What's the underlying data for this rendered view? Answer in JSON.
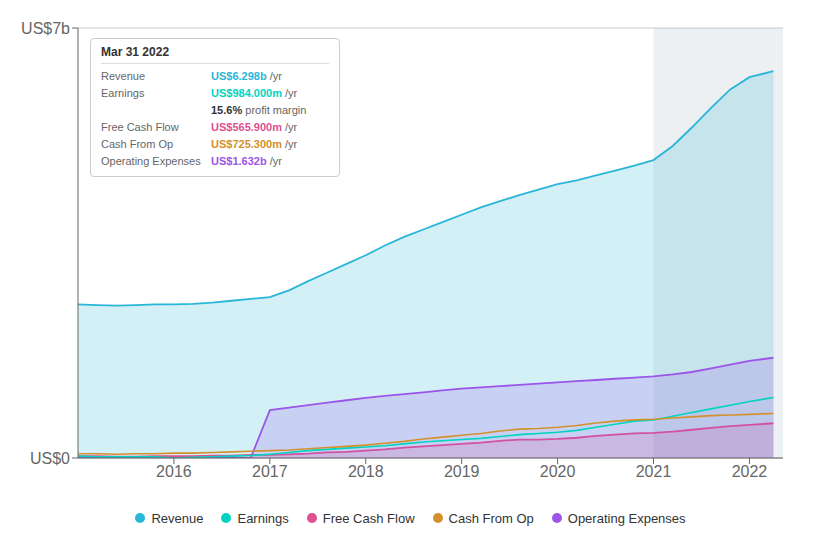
{
  "chart_data": {
    "type": "area",
    "x": [
      2015.0,
      2015.2,
      2015.4,
      2015.6,
      2015.8,
      2016.0,
      2016.2,
      2016.4,
      2016.6,
      2016.8,
      2017.0,
      2017.2,
      2017.4,
      2017.6,
      2017.8,
      2018.0,
      2018.2,
      2018.4,
      2018.6,
      2018.8,
      2019.0,
      2019.2,
      2019.4,
      2019.6,
      2019.8,
      2020.0,
      2020.2,
      2020.4,
      2020.6,
      2020.8,
      2021.0,
      2021.2,
      2021.4,
      2021.6,
      2021.8,
      2022.0,
      2022.25
    ],
    "series": [
      {
        "name": "Revenue",
        "type": "area",
        "color": "#29b6d8",
        "values": [
          2.5,
          2.49,
          2.48,
          2.49,
          2.5,
          2.5,
          2.51,
          2.53,
          2.56,
          2.59,
          2.62,
          2.73,
          2.88,
          3.02,
          3.16,
          3.3,
          3.46,
          3.6,
          3.72,
          3.84,
          3.96,
          4.08,
          4.18,
          4.28,
          4.37,
          4.46,
          4.52,
          4.6,
          4.68,
          4.76,
          4.85,
          5.08,
          5.38,
          5.7,
          6.0,
          6.2,
          6.298
        ]
      },
      {
        "name": "Earnings",
        "type": "line",
        "color": "#00d4c0",
        "values": [
          0.03,
          0.02,
          0.02,
          0.02,
          0.02,
          0.0,
          0.01,
          0.02,
          0.03,
          0.04,
          0.06,
          0.09,
          0.12,
          0.14,
          0.16,
          0.18,
          0.2,
          0.23,
          0.26,
          0.28,
          0.3,
          0.32,
          0.35,
          0.38,
          0.4,
          0.42,
          0.45,
          0.5,
          0.55,
          0.6,
          0.62,
          0.68,
          0.74,
          0.8,
          0.86,
          0.92,
          0.984
        ]
      },
      {
        "name": "Free Cash Flow",
        "type": "area",
        "color": "#e05090",
        "values": [
          0.03,
          0.03,
          0.02,
          0.02,
          0.03,
          0.03,
          0.03,
          0.04,
          0.04,
          0.05,
          0.05,
          0.06,
          0.07,
          0.09,
          0.1,
          0.12,
          0.14,
          0.17,
          0.19,
          0.21,
          0.23,
          0.25,
          0.28,
          0.3,
          0.3,
          0.31,
          0.33,
          0.36,
          0.38,
          0.4,
          0.41,
          0.43,
          0.46,
          0.49,
          0.52,
          0.54,
          0.5659
        ]
      },
      {
        "name": "Cash From Op",
        "type": "line",
        "color": "#d4902a",
        "values": [
          0.07,
          0.07,
          0.06,
          0.07,
          0.07,
          0.08,
          0.08,
          0.09,
          0.1,
          0.11,
          0.12,
          0.13,
          0.15,
          0.17,
          0.19,
          0.21,
          0.24,
          0.27,
          0.31,
          0.34,
          0.37,
          0.4,
          0.44,
          0.47,
          0.48,
          0.5,
          0.53,
          0.57,
          0.6,
          0.62,
          0.63,
          0.65,
          0.67,
          0.69,
          0.7,
          0.71,
          0.7253
        ]
      },
      {
        "name": "Operating Expenses",
        "type": "area",
        "color": "#9b55e8",
        "values": [
          0.0,
          0.0,
          0.0,
          0.0,
          0.0,
          0.0,
          0.0,
          0.0,
          0.0,
          0.0,
          0.78,
          0.82,
          0.86,
          0.9,
          0.94,
          0.98,
          1.01,
          1.04,
          1.07,
          1.1,
          1.13,
          1.15,
          1.17,
          1.19,
          1.21,
          1.23,
          1.25,
          1.27,
          1.29,
          1.31,
          1.33,
          1.36,
          1.4,
          1.46,
          1.52,
          1.58,
          1.632
        ]
      }
    ],
    "xlim": [
      2015.0,
      2022.35
    ],
    "xticks": [
      2016,
      2017,
      2018,
      2019,
      2020,
      2021,
      2022
    ],
    "ylim": [
      0.0,
      7.0
    ],
    "yticks": [
      {
        "value": 0,
        "label": "US$0"
      },
      {
        "value": 7,
        "label": "US$7b"
      }
    ],
    "grid": true,
    "legend": "bottom",
    "highlight": [
      2021.0,
      2022.35
    ],
    "annotations": [
      {
        "text": "Mar 31 2022"
      },
      {
        "label": "Revenue",
        "text": "US$6.298b",
        "suffix": " /yr",
        "color": "#29b6d8"
      },
      {
        "label": "Earnings",
        "text": "US$984.000m",
        "suffix": " /yr",
        "color": "#00d4c0"
      },
      {
        "text": "15.6%",
        "suffix": " profit margin"
      },
      {
        "label": "Free Cash Flow",
        "text": "US$565.900m",
        "suffix": " /yr",
        "color": "#e05090"
      },
      {
        "label": "Cash From Op",
        "text": "US$725.300m",
        "suffix": " /yr",
        "color": "#d4902a"
      },
      {
        "label": "Operating Expenses",
        "text": "US$1.632b",
        "suffix": " /yr",
        "color": "#9b55e8"
      }
    ]
  }
}
